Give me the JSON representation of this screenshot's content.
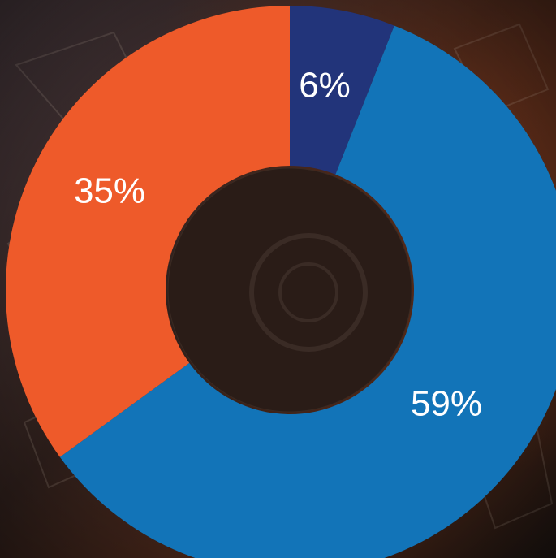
{
  "chart_data": {
    "type": "pie",
    "title": "",
    "categories": [
      "",
      "",
      ""
    ],
    "values": [
      6,
      59,
      35
    ],
    "labels": [
      "6%",
      "59%",
      "35%"
    ],
    "colors": [
      "#22347a",
      "#1274b8",
      "#ee5a2a"
    ],
    "donut": true,
    "start_angle_deg": 0,
    "direction": "clockwise"
  },
  "background": {
    "description_colors": [
      "#3b2b2e",
      "#5a2e1c",
      "#1d1512"
    ]
  }
}
